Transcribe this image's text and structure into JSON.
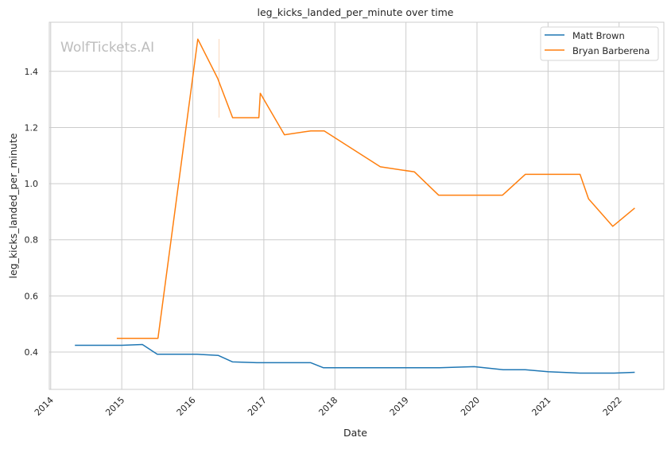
{
  "chart_data": {
    "type": "line",
    "title": "leg_kicks_landed_per_minute over time",
    "xlabel": "Date",
    "ylabel": "leg_kicks_landed_per_minute",
    "xlim": [
      2013.98,
      2022.63
    ],
    "ylim": [
      0.267,
      1.575
    ],
    "xticks": [
      2014,
      2015,
      2016,
      2017,
      2018,
      2019,
      2020,
      2021,
      2022
    ],
    "xtick_labels": [
      "2014",
      "2015",
      "2016",
      "2017",
      "2018",
      "2019",
      "2020",
      "2021",
      "2022"
    ],
    "yticks": [
      0.4,
      0.6,
      0.8,
      1.0,
      1.2,
      1.4
    ],
    "ytick_labels": [
      "0.4",
      "0.6",
      "0.8",
      "1.0",
      "1.2",
      "1.4"
    ],
    "grid": true,
    "legend_position": "top-right",
    "watermark": "WolfTickets.AI",
    "series": [
      {
        "name": "Matt Brown",
        "color": "#1f77b4",
        "x": [
          2014.34,
          2015.0,
          2015.29,
          2015.5,
          2016.06,
          2016.36,
          2016.56,
          2016.9,
          2017.66,
          2017.84,
          2019.47,
          2019.96,
          2020.37,
          2020.68,
          2021.0,
          2021.45,
          2021.93,
          2022.22
        ],
        "y": [
          0.424,
          0.424,
          0.427,
          0.392,
          0.392,
          0.388,
          0.365,
          0.362,
          0.362,
          0.344,
          0.344,
          0.348,
          0.337,
          0.337,
          0.33,
          0.325,
          0.325,
          0.328
        ]
      },
      {
        "name": "Bryan Barberena",
        "color": "#ff7f0e",
        "x": [
          2014.93,
          2015.51,
          2016.07,
          2016.35,
          2016.56,
          2016.93,
          2016.95,
          2017.29,
          2017.66,
          2017.85,
          2018.64,
          2019.12,
          2019.46,
          2020.36,
          2020.68,
          2021.45,
          2021.57,
          2021.91,
          2022.22
        ],
        "y": [
          0.449,
          0.449,
          1.515,
          1.375,
          1.235,
          1.235,
          1.322,
          1.174,
          1.188,
          1.188,
          1.06,
          1.042,
          0.959,
          0.959,
          1.033,
          1.033,
          0.946,
          0.848,
          0.913
        ]
      }
    ]
  }
}
